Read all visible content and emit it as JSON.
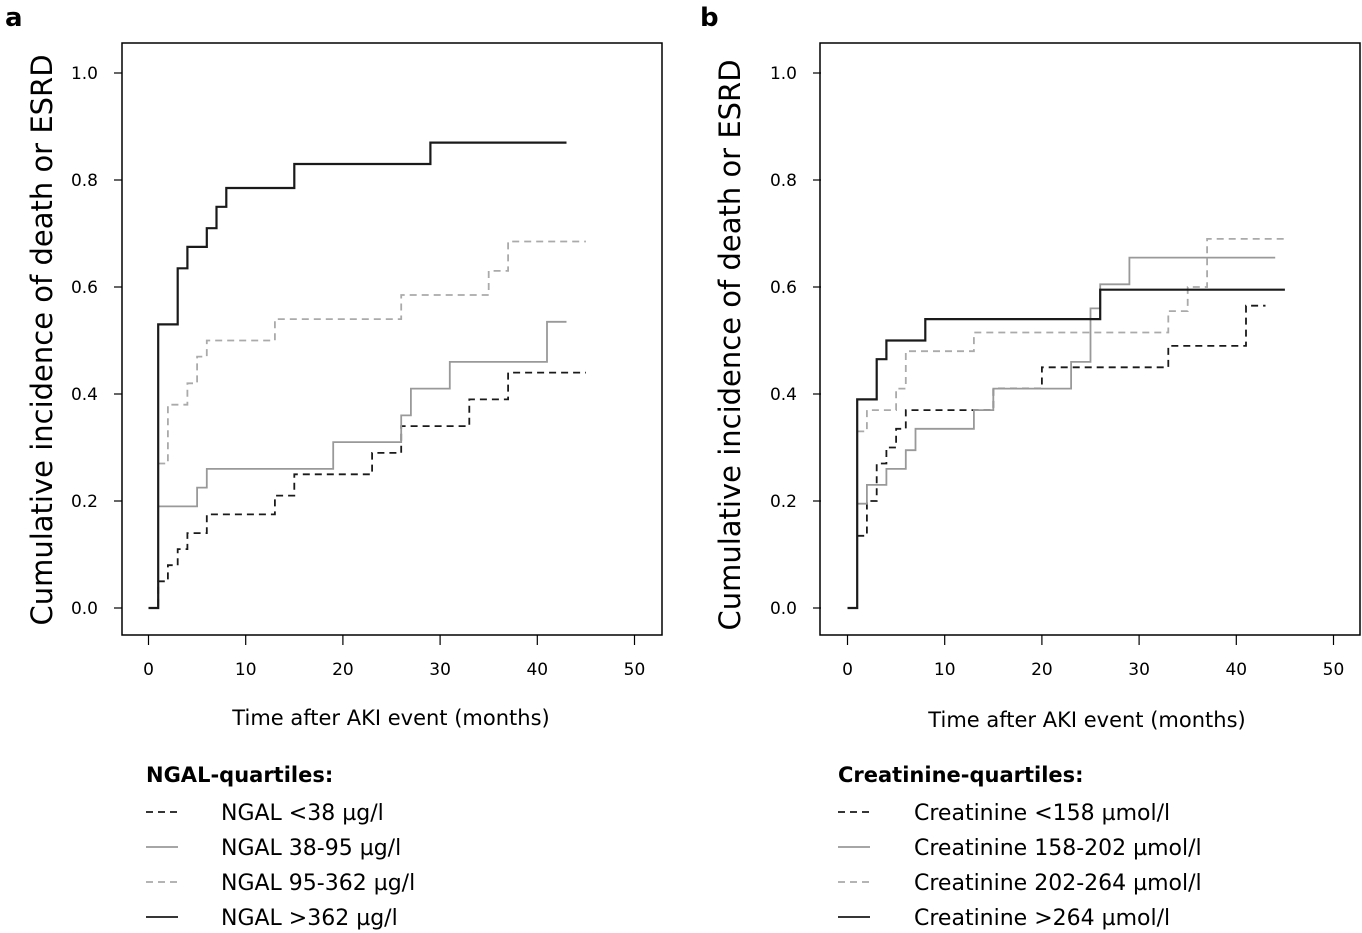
{
  "chart_data": [
    {
      "type": "line",
      "panel_label": "a",
      "xlabel": "Time after AKI event (months)",
      "ylabel": "Cumulative incidence of death or ESRD",
      "xlim": [
        -3,
        52
      ],
      "ylim": [
        -0.05,
        1.05
      ],
      "xticks": [
        0,
        10,
        20,
        30,
        40,
        50
      ],
      "yticks": [
        "0.0",
        "0.2",
        "0.4",
        "0.6",
        "0.8",
        "1.0"
      ],
      "grid": false,
      "legend_title": "NGAL-quartiles:",
      "legend_position": "below",
      "series": [
        {
          "name": "NGAL <38 µg/l",
          "style": "dashed",
          "color": "#1a1a1a",
          "points": [
            [
              0,
              0
            ],
            [
              1,
              0
            ],
            [
              1,
              0.05
            ],
            [
              2,
              0.05
            ],
            [
              2,
              0.08
            ],
            [
              3,
              0.08
            ],
            [
              3,
              0.11
            ],
            [
              4,
              0.11
            ],
            [
              4,
              0.14
            ],
            [
              6,
              0.14
            ],
            [
              6,
              0.175
            ],
            [
              13,
              0.175
            ],
            [
              13,
              0.21
            ],
            [
              15,
              0.21
            ],
            [
              15,
              0.25
            ],
            [
              23,
              0.25
            ],
            [
              23,
              0.29
            ],
            [
              26,
              0.29
            ],
            [
              26,
              0.34
            ],
            [
              33,
              0.34
            ],
            [
              33,
              0.39
            ],
            [
              37,
              0.39
            ],
            [
              37,
              0.44
            ],
            [
              45,
              0.44
            ]
          ]
        },
        {
          "name": "NGAL 38-95 µg/l",
          "style": "solid",
          "color": "#999999",
          "points": [
            [
              1,
              0.19
            ],
            [
              5,
              0.19
            ],
            [
              5,
              0.225
            ],
            [
              6,
              0.225
            ],
            [
              6,
              0.26
            ],
            [
              19,
              0.26
            ],
            [
              19,
              0.31
            ],
            [
              26,
              0.31
            ],
            [
              26,
              0.36
            ],
            [
              27,
              0.36
            ],
            [
              27,
              0.41
            ],
            [
              31,
              0.41
            ],
            [
              31,
              0.46
            ],
            [
              41,
              0.46
            ],
            [
              41,
              0.535
            ],
            [
              43,
              0.535
            ]
          ]
        },
        {
          "name": "NGAL 95-362 µg/l",
          "style": "dashed",
          "color": "#aaaaaa",
          "points": [
            [
              1,
              0.27
            ],
            [
              2,
              0.27
            ],
            [
              2,
              0.38
            ],
            [
              4,
              0.38
            ],
            [
              4,
              0.42
            ],
            [
              5,
              0.42
            ],
            [
              5,
              0.47
            ],
            [
              6,
              0.47
            ],
            [
              6,
              0.5
            ],
            [
              13,
              0.5
            ],
            [
              13,
              0.54
            ],
            [
              26,
              0.54
            ],
            [
              26,
              0.585
            ],
            [
              35,
              0.585
            ],
            [
              35,
              0.63
            ],
            [
              37,
              0.63
            ],
            [
              37,
              0.685
            ],
            [
              45,
              0.685
            ]
          ]
        },
        {
          "name": "NGAL >362 µg/l",
          "style": "solid",
          "color": "#1a1a1a",
          "points": [
            [
              0,
              0
            ],
            [
              1,
              0
            ],
            [
              1,
              0.53
            ],
            [
              3,
              0.53
            ],
            [
              3,
              0.635
            ],
            [
              4,
              0.635
            ],
            [
              4,
              0.675
            ],
            [
              6,
              0.675
            ],
            [
              6,
              0.71
            ],
            [
              7,
              0.71
            ],
            [
              7,
              0.75
            ],
            [
              8,
              0.75
            ],
            [
              8,
              0.785
            ],
            [
              15,
              0.785
            ],
            [
              15,
              0.83
            ],
            [
              29,
              0.83
            ],
            [
              29,
              0.87
            ],
            [
              43,
              0.87
            ]
          ]
        }
      ]
    },
    {
      "type": "line",
      "panel_label": "b",
      "xlabel": "Time after AKI event (months)",
      "ylabel": "Cumulative incidence of death or ESRD",
      "xlim": [
        -3,
        52
      ],
      "ylim": [
        -0.05,
        1.05
      ],
      "xticks": [
        0,
        10,
        20,
        30,
        40,
        50
      ],
      "yticks": [
        "0.0",
        "0.2",
        "0.4",
        "0.6",
        "0.8",
        "1.0"
      ],
      "grid": false,
      "legend_title": "Creatinine-quartiles:",
      "legend_position": "below",
      "series": [
        {
          "name": "Creatinine <158 µmol/l",
          "style": "dashed",
          "color": "#1a1a1a",
          "points": [
            [
              1,
              0.135
            ],
            [
              2,
              0.135
            ],
            [
              2,
              0.2
            ],
            [
              3,
              0.2
            ],
            [
              3,
              0.27
            ],
            [
              4,
              0.27
            ],
            [
              4,
              0.3
            ],
            [
              5,
              0.3
            ],
            [
              5,
              0.335
            ],
            [
              6,
              0.335
            ],
            [
              6,
              0.37
            ],
            [
              15,
              0.37
            ],
            [
              15,
              0.41
            ],
            [
              20,
              0.41
            ],
            [
              20,
              0.45
            ],
            [
              33,
              0.45
            ],
            [
              33,
              0.49
            ],
            [
              41,
              0.49
            ],
            [
              41,
              0.565
            ],
            [
              43,
              0.565
            ]
          ]
        },
        {
          "name": "Creatinine 158-202 µmol/l",
          "style": "solid",
          "color": "#999999",
          "points": [
            [
              1,
              0.195
            ],
            [
              2,
              0.195
            ],
            [
              2,
              0.23
            ],
            [
              4,
              0.23
            ],
            [
              4,
              0.26
            ],
            [
              6,
              0.26
            ],
            [
              6,
              0.295
            ],
            [
              7,
              0.295
            ],
            [
              7,
              0.335
            ],
            [
              13,
              0.335
            ],
            [
              13,
              0.37
            ],
            [
              15,
              0.37
            ],
            [
              15,
              0.41
            ],
            [
              23,
              0.41
            ],
            [
              23,
              0.46
            ],
            [
              25,
              0.46
            ],
            [
              25,
              0.56
            ],
            [
              26,
              0.56
            ],
            [
              26,
              0.605
            ],
            [
              29,
              0.605
            ],
            [
              29,
              0.655
            ],
            [
              44,
              0.655
            ]
          ]
        },
        {
          "name": "Creatinine 202-264 µmol/l",
          "style": "dashed",
          "color": "#aaaaaa",
          "points": [
            [
              1,
              0.33
            ],
            [
              2,
              0.33
            ],
            [
              2,
              0.37
            ],
            [
              5,
              0.37
            ],
            [
              5,
              0.41
            ],
            [
              6,
              0.41
            ],
            [
              6,
              0.48
            ],
            [
              13,
              0.48
            ],
            [
              13,
              0.515
            ],
            [
              33,
              0.515
            ],
            [
              33,
              0.555
            ],
            [
              35,
              0.555
            ],
            [
              35,
              0.6
            ],
            [
              37,
              0.6
            ],
            [
              37,
              0.69
            ],
            [
              45,
              0.69
            ]
          ]
        },
        {
          "name": "Creatinine >264 µmol/l",
          "style": "solid",
          "color": "#1a1a1a",
          "points": [
            [
              0,
              0
            ],
            [
              1,
              0
            ],
            [
              1,
              0.39
            ],
            [
              3,
              0.39
            ],
            [
              3,
              0.465
            ],
            [
              4,
              0.465
            ],
            [
              4,
              0.5
            ],
            [
              8,
              0.5
            ],
            [
              8,
              0.54
            ],
            [
              26,
              0.54
            ],
            [
              26,
              0.595
            ],
            [
              45,
              0.595
            ]
          ]
        }
      ]
    }
  ]
}
